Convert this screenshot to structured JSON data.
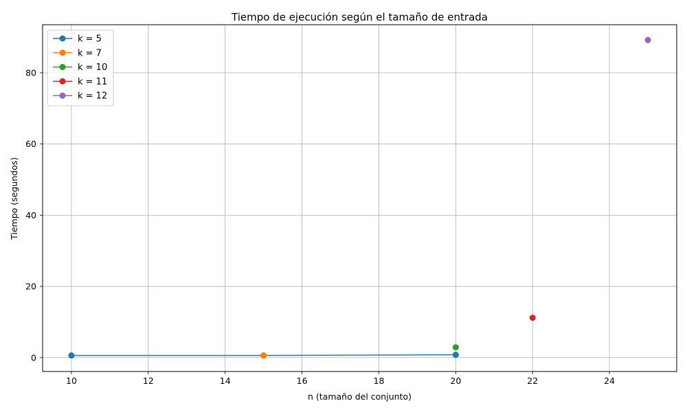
{
  "chart_data": {
    "type": "line",
    "title": "Tiempo de ejecución según el tamaño de entrada",
    "xlabel": "n (tamaño del conjunto)",
    "ylabel": "Tiempo (segundos)",
    "xlim": [
      9.25,
      25.75
    ],
    "ylim": [
      -3.9,
      93.5
    ],
    "xticks": [
      10,
      12,
      14,
      16,
      18,
      20,
      22,
      24
    ],
    "yticks": [
      0,
      20,
      40,
      60,
      80
    ],
    "grid": true,
    "legend_position": "top-left",
    "series": [
      {
        "name": "k = 5",
        "color": "#1f77b4",
        "x": [
          10,
          15,
          20
        ],
        "y": [
          0.6,
          0.6,
          0.8
        ]
      },
      {
        "name": "k = 7",
        "color": "#ff7f0e",
        "x": [
          15
        ],
        "y": [
          0.6
        ]
      },
      {
        "name": "k = 10",
        "color": "#2ca02c",
        "x": [
          20
        ],
        "y": [
          2.9
        ]
      },
      {
        "name": "k = 11",
        "color": "#d62728",
        "x": [
          22
        ],
        "y": [
          11.2
        ]
      },
      {
        "name": "k = 12",
        "color": "#9467bd",
        "x": [
          25
        ],
        "y": [
          89.2
        ]
      }
    ]
  }
}
